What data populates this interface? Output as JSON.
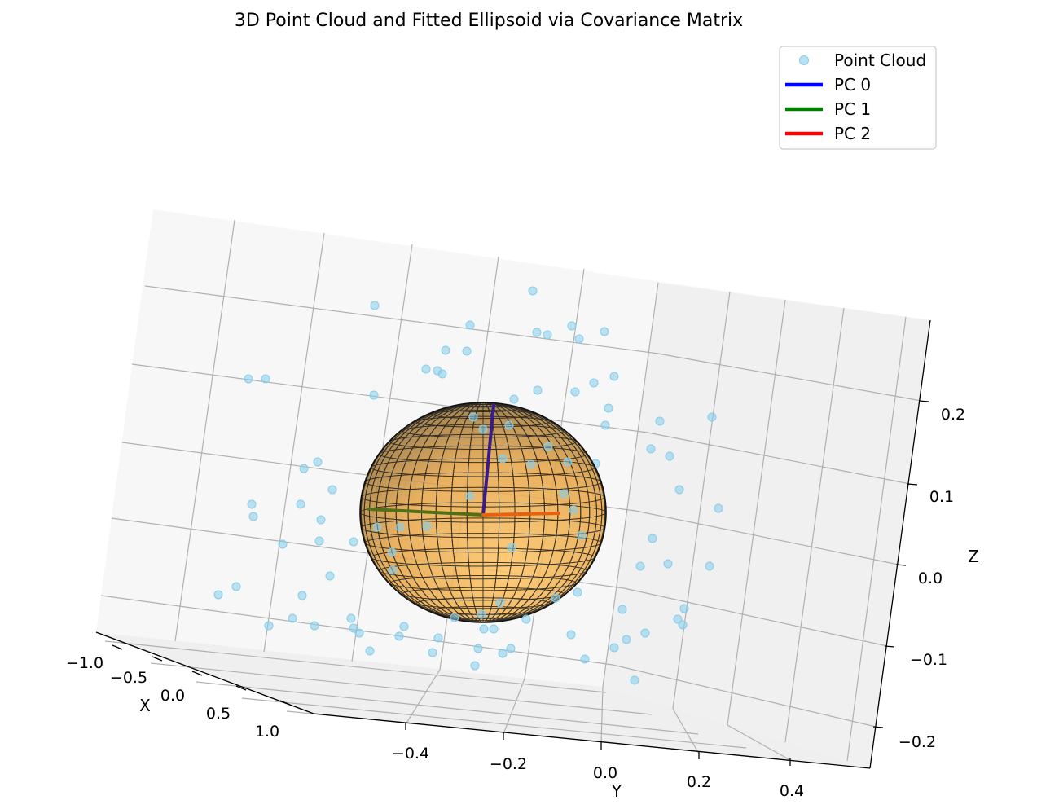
{
  "chart_data": {
    "type": "scatter",
    "title": "3D Point Cloud and Fitted Ellipsoid via Covariance Matrix",
    "xlabel": "X",
    "ylabel": "Y",
    "zlabel": "Z",
    "x_ticks": [
      "−1.0",
      "−0.5",
      "0.0",
      "0.5",
      "1.0"
    ],
    "y_ticks": [
      "−0.4",
      "−0.2",
      "0.0",
      "0.2",
      "0.4"
    ],
    "z_ticks": [
      "0.2",
      "0.1",
      "0.0",
      "−0.1",
      "−0.2"
    ],
    "grid": true,
    "legend_position": "top-right",
    "legend": [
      {
        "label": "Point Cloud",
        "kind": "marker",
        "color": "#87ceeb"
      },
      {
        "label": "PC 0",
        "kind": "line",
        "color": "#0000ff"
      },
      {
        "label": "PC 1",
        "kind": "line",
        "color": "#008000"
      },
      {
        "label": "PC 2",
        "kind": "line",
        "color": "#ff0000"
      }
    ],
    "point_color": "#87ceeb",
    "ellipsoid_color": "#ffa500"
  }
}
